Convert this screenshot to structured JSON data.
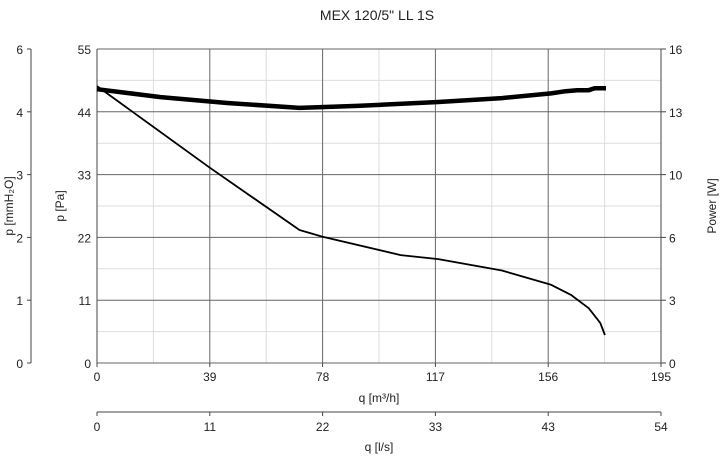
{
  "chart_data": {
    "type": "line",
    "title": "MEX 120/5\" LL 1S",
    "xlabel": "q [m³/h]",
    "xlim": [
      0,
      195
    ],
    "xticks": [
      "0",
      "39",
      "78",
      "117",
      "156",
      "195"
    ],
    "x2label": "q [l/s]",
    "x2ticks": [
      "0",
      "11",
      "22",
      "33",
      "43",
      "54"
    ],
    "ylabel": "p [Pa]",
    "ylim": [
      0,
      55
    ],
    "yticks": [
      "0",
      "11",
      "22",
      "33",
      "44",
      "55"
    ],
    "y_mm_label": "p [mmH₂O]",
    "y_mm_ticks": [
      "0",
      "1",
      "2",
      "3",
      "4",
      "6"
    ],
    "y2label": "Power [W]",
    "y2lim": [
      0,
      16
    ],
    "y2ticks": [
      "0",
      "3",
      "6",
      "10",
      "13",
      "16"
    ],
    "grid": true,
    "series": [
      {
        "axis": "pressure",
        "x": [
          0,
          39,
          70,
          78,
          105,
          118,
          140,
          157,
          164,
          170,
          174,
          175.6
        ],
        "y": [
          48.5,
          34.2,
          23.3,
          22.1,
          18.9,
          18.2,
          16.2,
          13.7,
          11.9,
          9.6,
          7.0,
          4.9
        ]
      },
      {
        "axis": "power",
        "x": [
          0,
          22,
          45,
          70,
          90,
          118,
          140,
          157,
          162,
          166,
          170,
          172,
          176
        ],
        "y": [
          13.95,
          13.55,
          13.25,
          13.0,
          13.1,
          13.3,
          13.5,
          13.74,
          13.85,
          13.9,
          13.9,
          14.0,
          14.0
        ]
      }
    ]
  }
}
